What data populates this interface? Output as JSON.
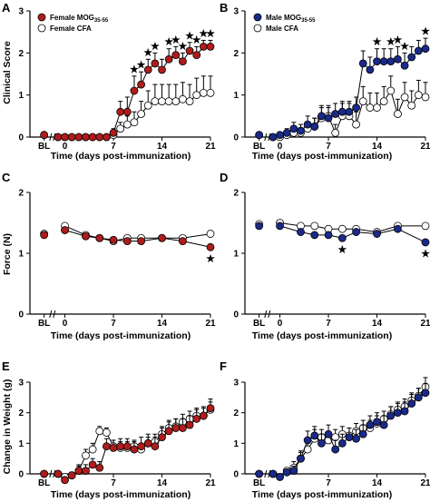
{
  "chart_data": [
    {
      "type": "line",
      "panel_label": "A",
      "ylabel": "Clinical Score",
      "xlabel": "Time (days post-immunization)",
      "ylim": [
        0,
        3
      ],
      "yticks": [
        "0",
        "1",
        "2",
        "3"
      ],
      "xticks": [
        "BL",
        "0",
        "7",
        "14",
        "21"
      ],
      "x": [
        -3,
        -1,
        0,
        1,
        2,
        3,
        4,
        5,
        6,
        7,
        8,
        9,
        10,
        11,
        12,
        13,
        14,
        15,
        16,
        17,
        18,
        19,
        20,
        21
      ],
      "series": [
        {
          "name": "Female MOG35-55",
          "color": "#b01c1c",
          "values": [
            0.05,
            0,
            0,
            0,
            0,
            0,
            0,
            0,
            0,
            0.1,
            0.6,
            0.6,
            1.1,
            1.25,
            1.6,
            1.75,
            1.6,
            1.85,
            1.95,
            1.8,
            2.05,
            1.95,
            2.15,
            2.15
          ],
          "errors": [
            0.05,
            0,
            0,
            0,
            0,
            0,
            0,
            0,
            0,
            0.1,
            0.25,
            0.35,
            0.35,
            0.3,
            0.25,
            0.25,
            0.25,
            0.25,
            0.2,
            0.2,
            0.2,
            0.2,
            0.15,
            0.15
          ]
        },
        {
          "name": "Female CFA",
          "color": "#ffffff",
          "values": [
            0.05,
            0,
            0,
            0,
            0,
            0,
            0,
            0,
            0,
            0.05,
            0.2,
            0.3,
            0.35,
            0.55,
            0.75,
            0.85,
            0.85,
            0.85,
            0.85,
            0.9,
            0.85,
            1.0,
            1.05,
            1.05
          ],
          "errors": [
            0.05,
            0,
            0,
            0,
            0,
            0,
            0,
            0,
            0,
            0.05,
            0.15,
            0.2,
            0.25,
            0.3,
            0.35,
            0.4,
            0.4,
            0.4,
            0.4,
            0.4,
            0.4,
            0.4,
            0.4,
            0.4
          ]
        }
      ],
      "star_x": [
        10,
        11,
        12,
        13,
        15,
        16,
        17,
        18,
        19,
        20,
        21
      ]
    },
    {
      "type": "line",
      "panel_label": "B",
      "ylabel": "",
      "xlabel": "Time (days post-immunization)",
      "ylim": [
        0,
        3
      ],
      "yticks": [
        "0",
        "1",
        "2",
        "3"
      ],
      "xticks": [
        "BL",
        "0",
        "7",
        "14",
        "21"
      ],
      "x": [
        -3,
        -1,
        0,
        1,
        2,
        3,
        4,
        5,
        6,
        7,
        8,
        9,
        10,
        11,
        12,
        13,
        14,
        15,
        16,
        17,
        18,
        19,
        20,
        21
      ],
      "series": [
        {
          "name": "Male MOG35-55",
          "color": "#1a2a8a",
          "values": [
            0.05,
            0,
            0.05,
            0.1,
            0.2,
            0.15,
            0.3,
            0.25,
            0.5,
            0.45,
            0.55,
            0.6,
            0.6,
            0.7,
            1.75,
            1.6,
            1.8,
            1.8,
            1.8,
            1.85,
            1.7,
            1.9,
            2.05,
            2.1
          ],
          "errors": [
            0.05,
            0,
            0.05,
            0.1,
            0.15,
            0.15,
            0.2,
            0.2,
            0.25,
            0.25,
            0.25,
            0.25,
            0.25,
            0.25,
            0.3,
            0.3,
            0.3,
            0.3,
            0.3,
            0.3,
            0.3,
            0.25,
            0.25,
            0.25
          ]
        },
        {
          "name": "Male CFA",
          "color": "#ffffff",
          "values": [
            0.05,
            0,
            0,
            0.05,
            0.1,
            0.1,
            0.2,
            0.25,
            0.45,
            0.5,
            0.1,
            0.5,
            0.5,
            0.3,
            0.85,
            0.7,
            0.7,
            0.85,
            1.1,
            0.55,
            0.95,
            0.75,
            1.0,
            0.95
          ],
          "errors": [
            0.05,
            0,
            0,
            0.05,
            0.1,
            0.1,
            0.15,
            0.2,
            0.25,
            0.25,
            0.2,
            0.3,
            0.3,
            0.3,
            0.35,
            0.35,
            0.35,
            0.35,
            0.35,
            0.35,
            0.35,
            0.35,
            0.35,
            0.35
          ]
        }
      ],
      "star_x": [
        14,
        16,
        17,
        18,
        21
      ]
    },
    {
      "type": "line",
      "panel_label": "C",
      "ylabel": "Force (N)",
      "xlabel": "Time (days post-immunization)",
      "ylim": [
        0,
        2
      ],
      "yticks": [
        "0",
        "1",
        "2"
      ],
      "xticks": [
        "BL",
        "0",
        "7",
        "14",
        "21"
      ],
      "x": [
        -3,
        0,
        3,
        5,
        7,
        9,
        11,
        14,
        17,
        21
      ],
      "series": [
        {
          "name": "Female MOG35-55",
          "color": "#b01c1c",
          "values": [
            1.3,
            1.38,
            1.28,
            1.25,
            1.22,
            1.2,
            1.2,
            1.25,
            1.2,
            1.1
          ],
          "errors": [
            0.02,
            0.02,
            0.02,
            0.02,
            0.03,
            0.02,
            0.02,
            0.02,
            0.02,
            0.05
          ]
        },
        {
          "name": "Female CFA",
          "color": "#ffffff",
          "values": [
            1.32,
            1.45,
            1.3,
            1.25,
            1.2,
            1.25,
            1.25,
            1.25,
            1.25,
            1.32
          ],
          "errors": [
            0.02,
            0.02,
            0.02,
            0.02,
            0.02,
            0.02,
            0.02,
            0.02,
            0.02,
            0.05
          ]
        }
      ],
      "star_x": [
        21
      ]
    },
    {
      "type": "line",
      "panel_label": "D",
      "ylabel": "",
      "xlabel": "Time (days post-immunization)",
      "ylim": [
        0,
        2
      ],
      "yticks": [
        "0",
        "1",
        "2"
      ],
      "xticks": [
        "BL",
        "0",
        "7",
        "14",
        "21"
      ],
      "x": [
        -3,
        0,
        3,
        5,
        7,
        9,
        11,
        14,
        17,
        21
      ],
      "series": [
        {
          "name": "Male MOG35-55",
          "color": "#1a2a8a",
          "values": [
            1.45,
            1.45,
            1.35,
            1.3,
            1.3,
            1.25,
            1.35,
            1.32,
            1.4,
            1.18
          ],
          "errors": [
            0.02,
            0.02,
            0.02,
            0.02,
            0.02,
            0.03,
            0.02,
            0.02,
            0.02,
            0.05
          ]
        },
        {
          "name": "Male CFA",
          "color": "#ffffff",
          "values": [
            1.48,
            1.5,
            1.45,
            1.45,
            1.4,
            1.4,
            1.4,
            1.35,
            1.45,
            1.45
          ],
          "errors": [
            0.02,
            0.02,
            0.02,
            0.02,
            0.02,
            0.02,
            0.02,
            0.02,
            0.02,
            0.03
          ]
        }
      ],
      "star_x": [
        9,
        21
      ]
    },
    {
      "type": "line",
      "panel_label": "E",
      "ylabel": "Change in Weight (g)",
      "xlabel": "Time (days post-immunization)",
      "ylim": [
        0,
        3
      ],
      "yticks": [
        "0",
        "1",
        "2",
        "3"
      ],
      "xticks": [
        "BL",
        "7",
        "14",
        "21"
      ],
      "x": [
        -3,
        -1,
        0,
        1,
        2,
        3,
        4,
        5,
        6,
        7,
        8,
        9,
        10,
        11,
        12,
        13,
        14,
        15,
        16,
        17,
        18,
        19,
        20,
        21
      ],
      "series": [
        {
          "name": "Female MOG35-55",
          "color": "#b01c1c",
          "values": [
            0,
            0,
            -0.2,
            -0.05,
            0.1,
            0.1,
            0.3,
            0.2,
            0.9,
            0.85,
            0.9,
            0.9,
            0.8,
            0.9,
            1.0,
            0.9,
            1.2,
            1.4,
            1.5,
            1.5,
            1.6,
            1.8,
            1.9,
            2.15
          ],
          "errors": [
            0,
            0.05,
            0.1,
            0.1,
            0.15,
            0.2,
            0.2,
            0.2,
            0.25,
            0.25,
            0.25,
            0.25,
            0.25,
            0.3,
            0.3,
            0.3,
            0.3,
            0.3,
            0.3,
            0.3,
            0.3,
            0.3,
            0.3,
            0.3
          ]
        },
        {
          "name": "Female CFA",
          "color": "#ffffff",
          "values": [
            0,
            0,
            -0.1,
            -0.05,
            0.1,
            0.6,
            0.8,
            1.4,
            1.35,
            0.9,
            0.85,
            0.85,
            0.9,
            0.8,
            1.0,
            1.05,
            1.3,
            1.5,
            1.55,
            1.7,
            1.8,
            1.9,
            1.9,
            2.1
          ],
          "errors": [
            0,
            0.05,
            0.1,
            0.1,
            0.2,
            0.2,
            0.2,
            0.15,
            0.15,
            0.2,
            0.2,
            0.2,
            0.2,
            0.2,
            0.2,
            0.25,
            0.25,
            0.25,
            0.25,
            0.25,
            0.25,
            0.25,
            0.25,
            0.25
          ]
        }
      ],
      "star_x": []
    },
    {
      "type": "line",
      "panel_label": "F",
      "ylabel": "",
      "xlabel": "Time (days post-immunization)",
      "ylim": [
        0,
        3
      ],
      "yticks": [
        "0",
        "1",
        "2",
        "3"
      ],
      "xticks": [
        "BL",
        "7",
        "14",
        "21"
      ],
      "x": [
        -3,
        -1,
        0,
        1,
        2,
        3,
        4,
        5,
        6,
        7,
        8,
        9,
        10,
        11,
        12,
        13,
        14,
        15,
        16,
        17,
        18,
        19,
        20,
        21
      ],
      "series": [
        {
          "name": "Male MOG35-55",
          "color": "#1a2a8a",
          "values": [
            0,
            0,
            -0.1,
            0.05,
            0.1,
            0.5,
            1.1,
            1.25,
            1.0,
            1.3,
            0.8,
            1.0,
            1.2,
            1.15,
            1.3,
            1.6,
            1.7,
            1.6,
            1.9,
            2.0,
            2.05,
            2.3,
            2.5,
            2.65
          ],
          "errors": [
            0,
            0.05,
            0.1,
            0.1,
            0.15,
            0.25,
            0.3,
            0.3,
            0.3,
            0.3,
            0.3,
            0.3,
            0.3,
            0.3,
            0.3,
            0.3,
            0.3,
            0.3,
            0.3,
            0.3,
            0.3,
            0.3,
            0.3,
            0.3
          ]
        },
        {
          "name": "Male CFA",
          "color": "#ffffff",
          "values": [
            0,
            0,
            -0.1,
            0.1,
            0.2,
            0.5,
            0.8,
            1.15,
            1.2,
            1.1,
            1.2,
            1.3,
            1.25,
            1.4,
            1.5,
            1.5,
            1.65,
            1.8,
            1.95,
            2.1,
            2.2,
            2.4,
            2.55,
            2.85
          ],
          "errors": [
            0,
            0.05,
            0.1,
            0.1,
            0.2,
            0.2,
            0.25,
            0.3,
            0.25,
            0.25,
            0.25,
            0.25,
            0.25,
            0.25,
            0.25,
            0.25,
            0.25,
            0.25,
            0.25,
            0.25,
            0.25,
            0.25,
            0.25,
            0.3
          ]
        }
      ],
      "star_x": []
    }
  ],
  "legends": {
    "female": {
      "mog": "Female MOG",
      "mog_sub": "35-55",
      "cfa": "Female CFA"
    },
    "male": {
      "mog": "Male MOG",
      "mog_sub": "35-55",
      "cfa": "Male CFA"
    }
  },
  "star_symbol": "★"
}
